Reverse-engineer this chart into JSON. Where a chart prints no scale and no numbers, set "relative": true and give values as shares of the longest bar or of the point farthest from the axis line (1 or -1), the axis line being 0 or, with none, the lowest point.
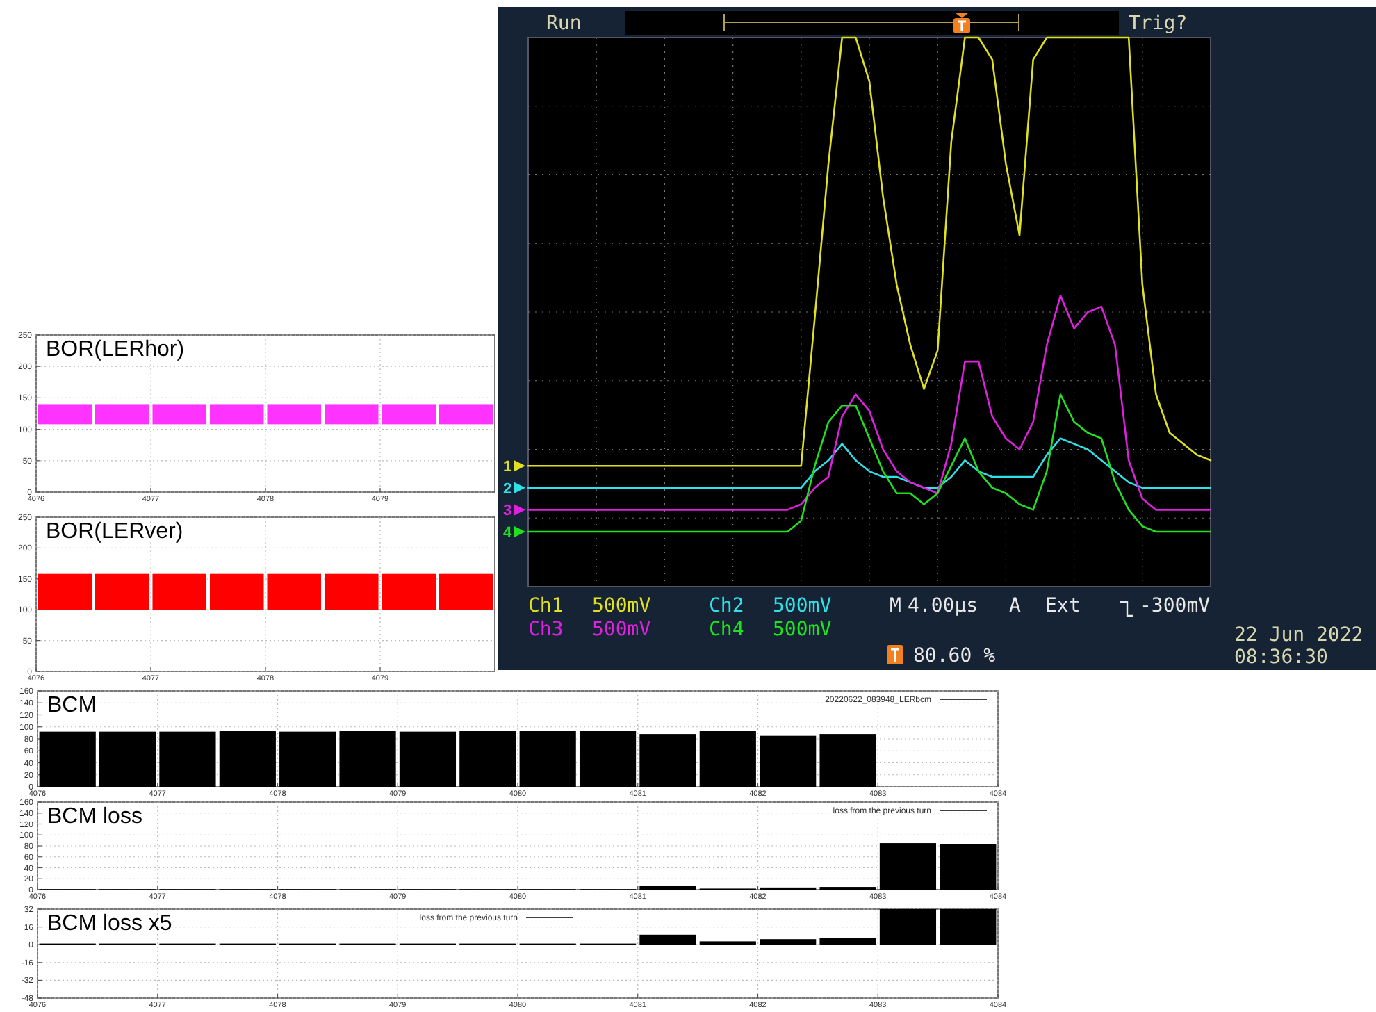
{
  "chart_data": [
    {
      "type": "bar",
      "title": "BOR(LERhor)",
      "x": [
        4076.25,
        4076.75,
        4077.25,
        4077.75,
        4078.25,
        4078.75,
        4079.25,
        4079.75
      ],
      "series": [
        {
          "color": "#ff33ff",
          "base": [
            108,
            108,
            108,
            108,
            108,
            108,
            108,
            108
          ],
          "values": [
            32,
            32,
            32,
            32,
            32,
            32,
            32,
            32
          ]
        }
      ],
      "xlim": [
        4076,
        4080
      ],
      "xticks": [
        4076,
        4077,
        4078,
        4079
      ],
      "ylim": [
        0,
        250
      ],
      "yticks": [
        0,
        50,
        100,
        150,
        200,
        250
      ],
      "grid": true
    },
    {
      "type": "bar",
      "title": "BOR(LERver)",
      "x": [
        4076.25,
        4076.75,
        4077.25,
        4077.75,
        4078.25,
        4078.75,
        4079.25,
        4079.75
      ],
      "series": [
        {
          "color": "#ff0000",
          "base": [
            100,
            100,
            100,
            100,
            100,
            100,
            100,
            100
          ],
          "values": [
            58,
            58,
            58,
            58,
            58,
            58,
            58,
            58
          ]
        }
      ],
      "xlim": [
        4076,
        4080
      ],
      "xticks": [
        4076,
        4077,
        4078,
        4079
      ],
      "ylim": [
        0,
        250
      ],
      "yticks": [
        0,
        50,
        100,
        150,
        200,
        250
      ],
      "grid": true
    },
    {
      "type": "bar",
      "title": "BCM",
      "x": [
        4076.25,
        4076.75,
        4077.25,
        4077.75,
        4078.25,
        4078.75,
        4079.25,
        4079.75,
        4080.25,
        4080.75,
        4081.25,
        4081.75,
        4082.25,
        4082.75
      ],
      "series": [
        {
          "name": "20220622_083948_LERbcm",
          "color": "#000000",
          "values": [
            92,
            92,
            92,
            93,
            92,
            93,
            92,
            93,
            93,
            93,
            88,
            93,
            85,
            88
          ]
        }
      ],
      "xlim": [
        4076,
        4084
      ],
      "xticks": [
        4076,
        4077,
        4078,
        4079,
        4080,
        4081,
        4082,
        4083,
        4084
      ],
      "ylim": [
        0,
        160
      ],
      "yticks": [
        0,
        20,
        40,
        60,
        80,
        100,
        120,
        140,
        160
      ],
      "grid": true,
      "legend": "top right"
    },
    {
      "type": "bar",
      "title": "BCM loss",
      "x": [
        4076.25,
        4076.75,
        4077.25,
        4077.75,
        4078.25,
        4078.75,
        4079.25,
        4079.75,
        4080.25,
        4080.75,
        4081.25,
        4081.75,
        4082.25,
        4082.75,
        4083.25,
        4083.75
      ],
      "series": [
        {
          "name": "loss from the previous turn",
          "color": "#000000",
          "values": [
            1,
            1,
            1,
            1,
            1,
            1,
            1,
            1,
            1,
            1,
            7,
            2,
            4,
            5,
            85,
            83
          ]
        }
      ],
      "xlim": [
        4076,
        4084
      ],
      "xticks": [
        4076,
        4077,
        4078,
        4079,
        4080,
        4081,
        4082,
        4083,
        4084
      ],
      "ylim": [
        0,
        160
      ],
      "yticks": [
        0,
        20,
        40,
        60,
        80,
        100,
        120,
        140,
        160
      ],
      "grid": true,
      "legend": "top right"
    },
    {
      "type": "bar",
      "title": "BCM loss x5",
      "x": [
        4076.25,
        4076.75,
        4077.25,
        4077.75,
        4078.25,
        4078.75,
        4079.25,
        4079.75,
        4080.25,
        4080.75,
        4081.25,
        4081.75,
        4082.25,
        4082.75,
        4083.25,
        4083.75
      ],
      "series": [
        {
          "name": "loss from the previous turn",
          "color": "#000000",
          "values": [
            1,
            1,
            1,
            1,
            1,
            1,
            1,
            1,
            1,
            1,
            9,
            3,
            5,
            6,
            32,
            32
          ]
        }
      ],
      "xlim": [
        4076,
        4084
      ],
      "xticks": [
        4076,
        4077,
        4078,
        4079,
        4080,
        4081,
        4082,
        4083,
        4084
      ],
      "ylim": [
        -48,
        32
      ],
      "yticks": [
        -48,
        -32,
        -16,
        0,
        16,
        32
      ],
      "grid": true,
      "legend": "top"
    },
    {
      "type": "line",
      "relative": true,
      "grid": true,
      "legend": "left",
      "categories": [
        null,
        null,
        null,
        null,
        null,
        null,
        null,
        null,
        null,
        null,
        null,
        null,
        null,
        null,
        null,
        null,
        null,
        null,
        null,
        null,
        null,
        null,
        null,
        null,
        null,
        null,
        null,
        null,
        null,
        null,
        null,
        null,
        null,
        null,
        null,
        null,
        null,
        null,
        null,
        null,
        null,
        null,
        null,
        null,
        null,
        null,
        null,
        null,
        null,
        null,
        null
      ],
      "series": [
        {
          "name": "1",
          "color": "#e0e020",
          "values": [
            0.22,
            0.22,
            0.22,
            0.22,
            0.22,
            0.22,
            0.22,
            0.22,
            0.22,
            0.22,
            0.22,
            0.22,
            0.22,
            0.22,
            0.22,
            0.22,
            0.22,
            0.22,
            0.22,
            0.22,
            0.22,
            0.49,
            0.77,
            1,
            1,
            0.92,
            0.71,
            0.55,
            0.44,
            0.36,
            0.43,
            0.81,
            1,
            1,
            0.96,
            0.77,
            0.64,
            0.96,
            1,
            1,
            1,
            1,
            1,
            1,
            1,
            0.55,
            0.35,
            0.28,
            0.26,
            0.24,
            0.23
          ]
        },
        {
          "name": "2",
          "color": "#30e0e8",
          "values": [
            0.18,
            0.18,
            0.18,
            0.18,
            0.18,
            0.18,
            0.18,
            0.18,
            0.18,
            0.18,
            0.18,
            0.18,
            0.18,
            0.18,
            0.18,
            0.18,
            0.18,
            0.18,
            0.18,
            0.18,
            0.18,
            0.21,
            0.23,
            0.26,
            0.23,
            0.21,
            0.2,
            0.2,
            0.19,
            0.18,
            0.18,
            0.2,
            0.23,
            0.21,
            0.2,
            0.2,
            0.2,
            0.2,
            0.24,
            0.27,
            0.26,
            0.25,
            0.23,
            0.21,
            0.19,
            0.18,
            0.18,
            0.18,
            0.18,
            0.18,
            0.18
          ]
        },
        {
          "name": "3",
          "color": "#e020e0",
          "values": [
            0.14,
            0.14,
            0.14,
            0.14,
            0.14,
            0.14,
            0.14,
            0.14,
            0.14,
            0.14,
            0.14,
            0.14,
            0.14,
            0.14,
            0.14,
            0.14,
            0.14,
            0.14,
            0.14,
            0.14,
            0.15,
            0.18,
            0.2,
            0.31,
            0.35,
            0.32,
            0.25,
            0.21,
            0.19,
            0.18,
            0.17,
            0.26,
            0.41,
            0.41,
            0.31,
            0.27,
            0.25,
            0.3,
            0.44,
            0.53,
            0.47,
            0.5,
            0.51,
            0.44,
            0.23,
            0.16,
            0.14,
            0.14,
            0.14,
            0.14,
            0.14
          ]
        },
        {
          "name": "4",
          "color": "#20e020",
          "values": [
            0.1,
            0.1,
            0.1,
            0.1,
            0.1,
            0.1,
            0.1,
            0.1,
            0.1,
            0.1,
            0.1,
            0.1,
            0.1,
            0.1,
            0.1,
            0.1,
            0.1,
            0.1,
            0.1,
            0.1,
            0.12,
            0.22,
            0.3,
            0.33,
            0.33,
            0.27,
            0.21,
            0.17,
            0.17,
            0.15,
            0.17,
            0.22,
            0.27,
            0.21,
            0.18,
            0.17,
            0.15,
            0.14,
            0.21,
            0.35,
            0.3,
            0.28,
            0.27,
            0.19,
            0.14,
            0.11,
            0.1,
            0.1,
            0.1,
            0.1,
            0.1
          ]
        }
      ],
      "annotations": [
        "Run",
        "Trig?",
        "Ch1",
        "500mV",
        "Ch2",
        "500mV",
        "Ch3",
        "500mV",
        "Ch4",
        "500mV",
        "M",
        "4.00µs",
        "A",
        "Ext",
        "-300mV",
        "80.60 %",
        "22 Jun  2022",
        "08:36:30"
      ]
    }
  ]
}
